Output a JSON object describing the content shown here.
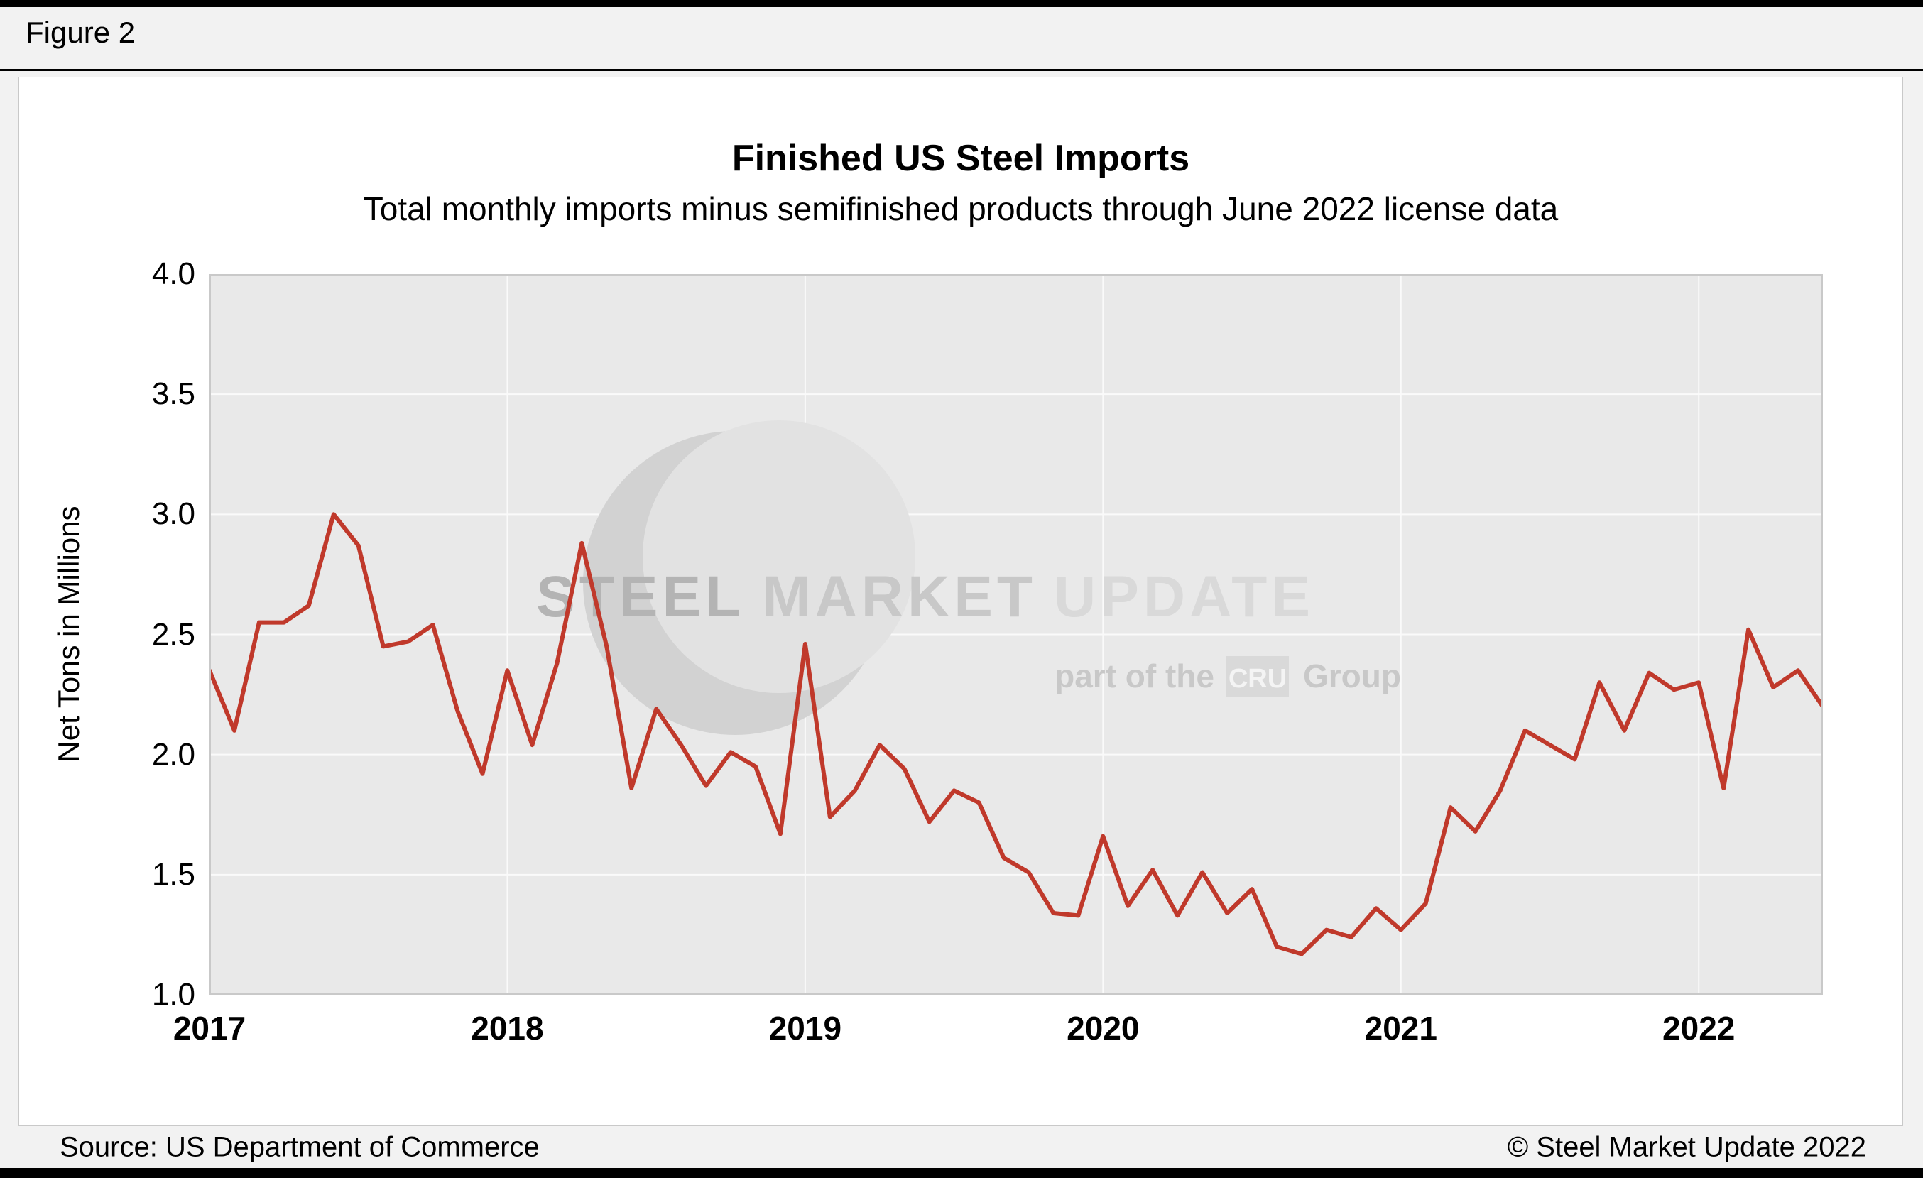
{
  "figure_label": "Figure 2",
  "chart_data": {
    "type": "line",
    "title": "Finished US Steel Imports",
    "subtitle": "Total monthly imports minus semifinished products through June 2022 license data",
    "ylabel": "Net Tons in Millions",
    "xlabel": "",
    "ylim": [
      1.0,
      4.0
    ],
    "ytick_step": 0.5,
    "ytick_labels": [
      "4.0",
      "3.5",
      "3.0",
      "2.5",
      "2.0",
      "1.5",
      "1.0"
    ],
    "x_start": "2017-01",
    "x_end": "2022-06",
    "x_tick_labels": [
      "2017",
      "2018",
      "2019",
      "2020",
      "2021",
      "2022"
    ],
    "x_tick_indices": [
      0,
      12,
      24,
      36,
      48,
      60
    ],
    "grid": true,
    "legend_position": "none",
    "series": [
      {
        "name": "Finished US steel imports",
        "color": "#c0392b",
        "values": [
          2.35,
          2.1,
          2.55,
          2.55,
          2.62,
          3.0,
          2.87,
          2.45,
          2.47,
          2.54,
          2.18,
          1.92,
          2.35,
          2.04,
          2.38,
          2.88,
          2.45,
          1.86,
          2.19,
          2.04,
          1.87,
          2.01,
          1.95,
          1.67,
          2.46,
          1.74,
          1.85,
          2.04,
          1.94,
          1.72,
          1.85,
          1.8,
          1.57,
          1.51,
          1.34,
          1.33,
          1.66,
          1.37,
          1.52,
          1.33,
          1.51,
          1.34,
          1.44,
          1.2,
          1.17,
          1.27,
          1.24,
          1.36,
          1.27,
          1.38,
          1.78,
          1.68,
          1.85,
          2.1,
          2.04,
          1.98,
          2.3,
          2.1,
          2.34,
          2.27,
          2.3,
          1.86,
          2.52,
          2.28,
          2.35,
          2.2
        ]
      }
    ]
  },
  "watermark": {
    "word1": "STEEL",
    "word2": "MARKET",
    "word3": "UPDATE",
    "line2_prefix": "part of the",
    "line2_box": "CRU",
    "line2_suffix": "Group"
  },
  "footer": {
    "source": "Source: US Department of Commerce",
    "copyright": "© Steel Market Update 2022"
  },
  "colors": {
    "page_bg": "#f2f2f2",
    "panel_bg": "#ffffff",
    "plot_bg": "#e9e9e9",
    "grid": "#fafafa",
    "plot_border": "#c9c9c9",
    "line": "#c0392b",
    "watermark_disc": "#d2d2d2",
    "watermark_bite": "#e2e2e2",
    "watermark_text_dark": "#b4b4b4",
    "watermark_text_mid": "#c8c8c8",
    "watermark_text_light": "#d9d9d9"
  }
}
